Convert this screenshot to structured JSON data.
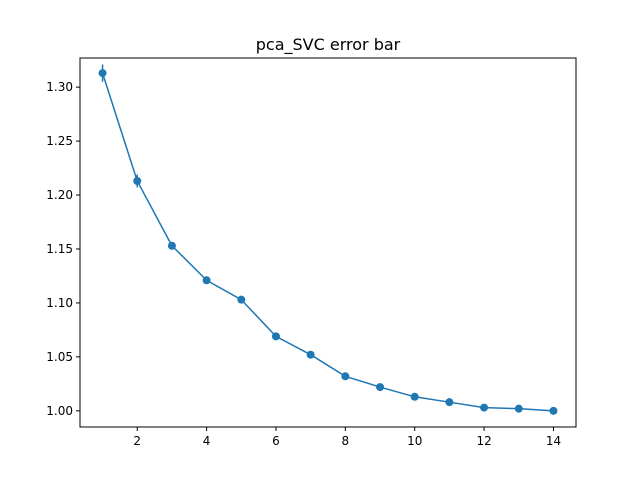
{
  "chart_data": {
    "type": "line",
    "title": "pca_SVC error bar",
    "xlabel": "",
    "ylabel": "",
    "xlim": [
      0.35,
      14.65
    ],
    "ylim": [
      0.985,
      1.327
    ],
    "xticks": [
      2,
      4,
      6,
      8,
      10,
      12,
      14
    ],
    "yticks": [
      1.0,
      1.05,
      1.1,
      1.15,
      1.2,
      1.25,
      1.3
    ],
    "grid": false,
    "color": "#1f77b4",
    "series": [
      {
        "x": [
          1,
          2,
          3,
          4,
          5,
          6,
          7,
          8,
          9,
          10,
          11,
          12,
          13,
          14
        ],
        "y": [
          1.313,
          1.213,
          1.153,
          1.121,
          1.103,
          1.069,
          1.052,
          1.032,
          1.022,
          1.013,
          1.008,
          1.003,
          1.002,
          1.0
        ],
        "err": [
          0.008,
          0.006,
          0.003,
          0.003,
          0.003,
          0.002,
          0.002,
          0.002,
          0.002,
          0.002,
          0.002,
          0.002,
          0.002,
          0.001
        ]
      }
    ]
  }
}
